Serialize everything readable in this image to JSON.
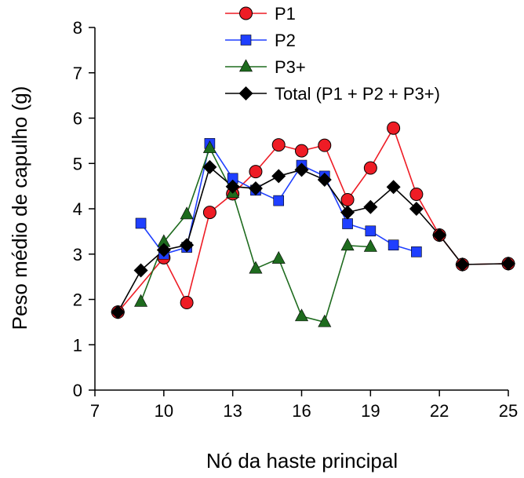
{
  "chart_data": {
    "type": "line",
    "title": "",
    "xlabel": "Nó da haste principal",
    "ylabel": "Peso médio de capulho (g)",
    "xlim": [
      7,
      25
    ],
    "ylim": [
      0,
      8
    ],
    "xticks": [
      7,
      10,
      13,
      16,
      19,
      22,
      25
    ],
    "yticks": [
      0,
      1,
      2,
      3,
      4,
      5,
      6,
      7,
      8
    ],
    "grid": false,
    "legend_position": "top-right",
    "series": [
      {
        "name": "P1",
        "color": "#ee1c25",
        "marker": "circle",
        "points": [
          [
            8,
            1.72
          ],
          [
            10,
            2.92
          ],
          [
            11,
            1.93
          ],
          [
            12,
            3.92
          ],
          [
            13,
            4.33
          ],
          [
            14,
            4.82
          ],
          [
            15,
            5.41
          ],
          [
            16,
            5.28
          ],
          [
            17,
            5.4
          ],
          [
            18,
            4.2
          ],
          [
            19,
            4.9
          ],
          [
            20,
            5.78
          ],
          [
            21,
            4.32
          ],
          [
            22,
            3.42
          ],
          [
            23,
            2.77
          ],
          [
            25,
            2.79
          ]
        ]
      },
      {
        "name": "P2",
        "color": "#1f3fff",
        "marker": "square",
        "points": [
          [
            9,
            3.68
          ],
          [
            10,
            3.0
          ],
          [
            11,
            3.15
          ],
          [
            12,
            5.44
          ],
          [
            13,
            4.67
          ],
          [
            14,
            4.41
          ],
          [
            15,
            4.18
          ],
          [
            16,
            4.96
          ],
          [
            17,
            4.72
          ],
          [
            18,
            3.67
          ],
          [
            19,
            3.51
          ],
          [
            20,
            3.2
          ],
          [
            21,
            3.05
          ]
        ]
      },
      {
        "name": "P3+",
        "color": "#1e6b1e",
        "marker": "triangle",
        "points": [
          [
            9,
            1.95
          ],
          [
            10,
            3.27
          ],
          [
            11,
            3.88
          ],
          [
            12,
            5.34
          ],
          [
            13,
            4.35
          ],
          [
            14,
            2.68
          ],
          [
            15,
            2.9
          ],
          [
            16,
            1.63
          ],
          [
            17,
            1.5
          ],
          [
            18,
            3.19
          ],
          [
            19,
            3.16
          ]
        ]
      },
      {
        "name": "Total (P1 + P2 + P3+)",
        "color": "#000000",
        "marker": "diamond",
        "points": [
          [
            8,
            1.72
          ],
          [
            9,
            2.64
          ],
          [
            10,
            3.09
          ],
          [
            11,
            3.2
          ],
          [
            12,
            4.92
          ],
          [
            13,
            4.49
          ],
          [
            14,
            4.45
          ],
          [
            15,
            4.72
          ],
          [
            16,
            4.86
          ],
          [
            17,
            4.64
          ],
          [
            18,
            3.92
          ],
          [
            19,
            4.04
          ],
          [
            20,
            4.48
          ],
          [
            21,
            4.0
          ],
          [
            22,
            3.42
          ],
          [
            23,
            2.77
          ],
          [
            25,
            2.79
          ]
        ]
      }
    ]
  }
}
